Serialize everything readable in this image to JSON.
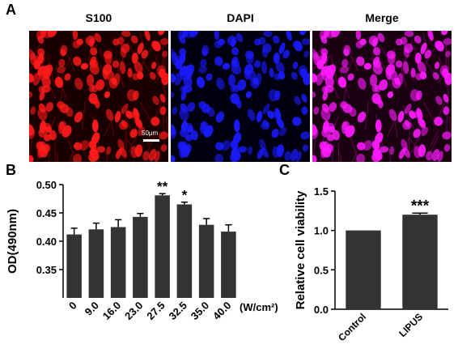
{
  "panel_a": {
    "letter": "A",
    "titles": [
      "S100",
      "DAPI",
      "Merge"
    ],
    "colors": [
      "#ff1a1a",
      "#1a1aff",
      "#ff1aff"
    ],
    "scale_bar_label": "50μm"
  },
  "panel_b": {
    "letter": "B"
  },
  "panel_c": {
    "letter": "C"
  },
  "chart_data": [
    {
      "type": "bar",
      "ylabel": "OD(490nm)",
      "xunit": "(W/cm²)",
      "categories": [
        "0",
        "9.0",
        "16.0",
        "23.0",
        "27.5",
        "32.5",
        "35.0",
        "40.0"
      ],
      "values": [
        0.412,
        0.421,
        0.425,
        0.443,
        0.481,
        0.465,
        0.429,
        0.417
      ],
      "errors": [
        0.011,
        0.011,
        0.013,
        0.006,
        0.003,
        0.004,
        0.011,
        0.012
      ],
      "annotations": [
        "",
        "",
        "",
        "",
        "**",
        "*",
        "",
        ""
      ],
      "ylim": [
        0.3,
        0.5
      ],
      "yticks": [
        "0.35",
        "0.40",
        "0.45",
        "0.50"
      ],
      "bar_color": "#333333"
    },
    {
      "type": "bar",
      "ylabel": "Relative cell viability",
      "categories": [
        "Control",
        "LIPUS"
      ],
      "values": [
        1.0,
        1.2
      ],
      "errors": [
        0.0,
        0.02
      ],
      "annotations": [
        "",
        "***"
      ],
      "ylim": [
        0.0,
        1.5
      ],
      "yticks": [
        "0.0",
        "0.5",
        "1.0",
        "1.5"
      ],
      "bar_color": "#333333"
    }
  ]
}
